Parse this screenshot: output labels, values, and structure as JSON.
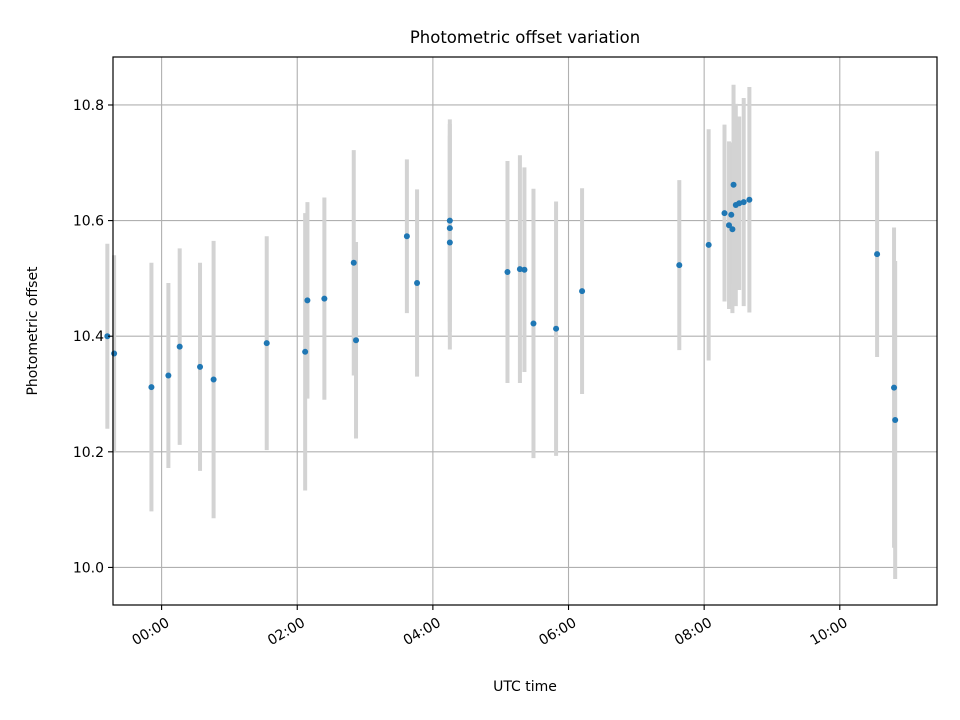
{
  "chart_data": {
    "type": "scatter",
    "title": "Photometric offset variation",
    "xlabel": "UTC time",
    "ylabel": "Photometric offset",
    "x_unit": "UTC time (HH:MM)",
    "xlim": [
      "-00:43",
      "11:26"
    ],
    "ylim": [
      9.935,
      10.883
    ],
    "x_ticks": [
      "00:00",
      "02:00",
      "04:00",
      "06:00",
      "08:00",
      "10:00"
    ],
    "y_ticks": [
      10.0,
      10.2,
      10.4,
      10.6,
      10.8
    ],
    "y_tick_labels": [
      "10.0",
      "10.2",
      "10.4",
      "10.6",
      "10.8"
    ],
    "grid": true,
    "legend": null,
    "colors": {
      "point": "#1f77b4",
      "errorbar": "#d3d3d3",
      "grid": "#b0b0b0",
      "axes": "#000000"
    },
    "series": [
      {
        "points": [
          {
            "x": "23:12",
            "y": 10.4,
            "err": 0.16
          },
          {
            "x": "23:18",
            "y": 10.37,
            "err": 0.17
          },
          {
            "x": "23:51",
            "y": 10.312,
            "err": 0.215
          },
          {
            "x": "00:06",
            "y": 10.332,
            "err": 0.16
          },
          {
            "x": "00:16",
            "y": 10.382,
            "err": 0.17
          },
          {
            "x": "00:34",
            "y": 10.347,
            "err": 0.18
          },
          {
            "x": "00:46",
            "y": 10.325,
            "err": 0.24
          },
          {
            "x": "01:33",
            "y": 10.388,
            "err": 0.185
          },
          {
            "x": "02:07",
            "y": 10.373,
            "err": 0.24
          },
          {
            "x": "02:09",
            "y": 10.462,
            "err": 0.17
          },
          {
            "x": "02:24",
            "y": 10.465,
            "err": 0.175
          },
          {
            "x": "02:50",
            "y": 10.527,
            "err": 0.195
          },
          {
            "x": "02:52",
            "y": 10.393,
            "err": 0.17
          },
          {
            "x": "03:37",
            "y": 10.573,
            "err": 0.133
          },
          {
            "x": "03:46",
            "y": 10.492,
            "err": 0.162
          },
          {
            "x": "04:15",
            "y": 10.6,
            "err": 0.175
          },
          {
            "x": "04:15",
            "y": 10.587,
            "err": 0.18
          },
          {
            "x": "04:15",
            "y": 10.562,
            "err": 0.185
          },
          {
            "x": "05:06",
            "y": 10.511,
            "err": 0.192
          },
          {
            "x": "05:17",
            "y": 10.516,
            "err": 0.197
          },
          {
            "x": "05:21",
            "y": 10.515,
            "err": 0.177
          },
          {
            "x": "05:29",
            "y": 10.422,
            "err": 0.233
          },
          {
            "x": "05:49",
            "y": 10.413,
            "err": 0.22
          },
          {
            "x": "06:12",
            "y": 10.478,
            "err": 0.178
          },
          {
            "x": "07:38",
            "y": 10.523,
            "err": 0.147
          },
          {
            "x": "08:04",
            "y": 10.558,
            "err": 0.2
          },
          {
            "x": "08:18",
            "y": 10.613,
            "err": 0.153
          },
          {
            "x": "08:22",
            "y": 10.592,
            "err": 0.145
          },
          {
            "x": "08:24",
            "y": 10.61,
            "err": 0.125
          },
          {
            "x": "08:25",
            "y": 10.585,
            "err": 0.145
          },
          {
            "x": "08:26",
            "y": 10.662,
            "err": 0.173
          },
          {
            "x": "08:28",
            "y": 10.627,
            "err": 0.175
          },
          {
            "x": "08:31",
            "y": 10.63,
            "err": 0.15
          },
          {
            "x": "08:35",
            "y": 10.632,
            "err": 0.18
          },
          {
            "x": "08:40",
            "y": 10.636,
            "err": 0.195
          },
          {
            "x": "10:33",
            "y": 10.542,
            "err": 0.178
          },
          {
            "x": "10:48",
            "y": 10.311,
            "err": 0.277
          },
          {
            "x": "10:49",
            "y": 10.255,
            "err": 0.275
          }
        ]
      }
    ]
  }
}
